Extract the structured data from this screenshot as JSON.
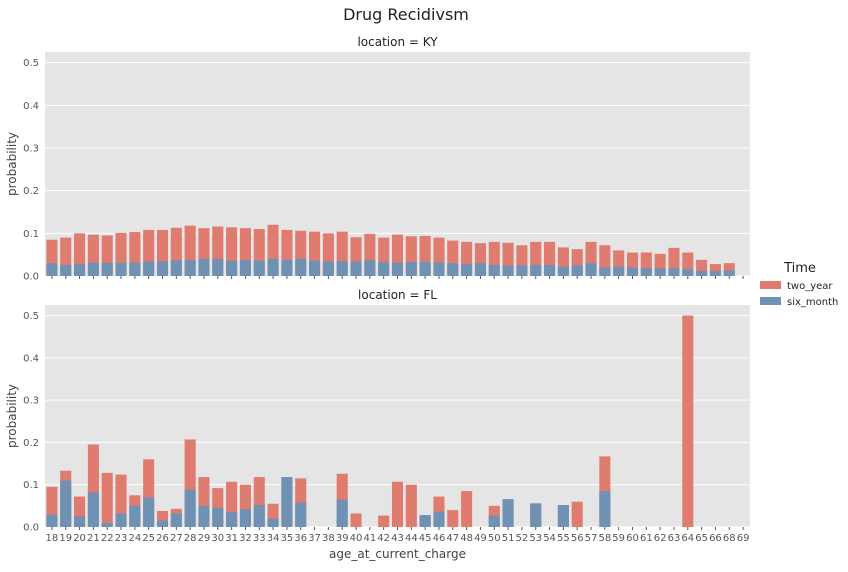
{
  "title": "Drug Recidivsm",
  "colors": {
    "two_year": "#e07b6f",
    "six_month": "#6f92b4",
    "panel_bg": "#e5e5e5",
    "grid": "#ffffff"
  },
  "legend": {
    "title": "Time",
    "placement": "right-center",
    "entries": [
      "two_year",
      "six_month"
    ]
  },
  "chart_data": [
    {
      "type": "bar",
      "title": "location = KY",
      "xlabel": "",
      "ylabel": "probability",
      "ylim": [
        0,
        0.525
      ],
      "yticks": [
        "0.0",
        "0.1",
        "0.2",
        "0.3",
        "0.4",
        "0.5"
      ],
      "categories": [
        "18",
        "19",
        "20",
        "21",
        "22",
        "23",
        "24",
        "25",
        "26",
        "27",
        "28",
        "29",
        "30",
        "31",
        "32",
        "33",
        "34",
        "35",
        "36",
        "37",
        "38",
        "39",
        "40",
        "41",
        "42",
        "43",
        "44",
        "45",
        "46",
        "47",
        "48",
        "49",
        "50",
        "51",
        "52",
        "53",
        "54",
        "55",
        "56",
        "57",
        "58",
        "59",
        "60",
        "61",
        "62",
        "63",
        "64",
        "65",
        "66",
        "68",
        "69"
      ],
      "series": [
        {
          "name": "two_year",
          "values": [
            0.085,
            0.09,
            0.1,
            0.097,
            0.095,
            0.101,
            0.103,
            0.108,
            0.108,
            0.113,
            0.118,
            0.112,
            0.116,
            0.114,
            0.112,
            0.11,
            0.12,
            0.108,
            0.106,
            0.104,
            0.1,
            0.104,
            0.091,
            0.099,
            0.09,
            0.097,
            0.093,
            0.094,
            0.09,
            0.083,
            0.08,
            0.077,
            0.08,
            0.078,
            0.072,
            0.08,
            0.08,
            0.067,
            0.063,
            0.08,
            0.072,
            0.06,
            0.055,
            0.055,
            0.052,
            0.066,
            0.055,
            0.038,
            0.028,
            0.03,
            0.0
          ]
        },
        {
          "name": "six_month",
          "values": [
            0.03,
            0.026,
            0.028,
            0.031,
            0.031,
            0.031,
            0.032,
            0.034,
            0.035,
            0.037,
            0.037,
            0.04,
            0.04,
            0.036,
            0.037,
            0.036,
            0.04,
            0.038,
            0.04,
            0.036,
            0.034,
            0.035,
            0.034,
            0.037,
            0.033,
            0.031,
            0.033,
            0.033,
            0.032,
            0.03,
            0.028,
            0.03,
            0.026,
            0.024,
            0.025,
            0.026,
            0.026,
            0.022,
            0.025,
            0.03,
            0.02,
            0.022,
            0.02,
            0.019,
            0.018,
            0.018,
            0.016,
            0.012,
            0.012,
            0.013,
            0.0
          ]
        }
      ]
    },
    {
      "type": "bar",
      "title": "location = FL",
      "xlabel": "age_at_current_charge",
      "ylabel": "probability",
      "ylim": [
        0,
        0.525
      ],
      "yticks": [
        "0.0",
        "0.1",
        "0.2",
        "0.3",
        "0.4",
        "0.5"
      ],
      "categories": [
        "18",
        "19",
        "20",
        "21",
        "22",
        "23",
        "24",
        "25",
        "26",
        "27",
        "28",
        "29",
        "30",
        "31",
        "32",
        "33",
        "34",
        "35",
        "36",
        "37",
        "38",
        "39",
        "40",
        "41",
        "42",
        "43",
        "44",
        "45",
        "46",
        "47",
        "48",
        "49",
        "50",
        "51",
        "52",
        "53",
        "54",
        "55",
        "56",
        "57",
        "58",
        "59",
        "60",
        "61",
        "62",
        "63",
        "64",
        "65",
        "66",
        "68",
        "69"
      ],
      "series": [
        {
          "name": "two_year",
          "values": [
            0.095,
            0.133,
            0.072,
            0.195,
            0.128,
            0.124,
            0.075,
            0.16,
            0.038,
            0.043,
            0.207,
            0.118,
            0.092,
            0.107,
            0.1,
            0.118,
            0.055,
            0.118,
            0.115,
            0.0,
            0.0,
            0.126,
            0.032,
            0.0,
            0.027,
            0.107,
            0.1,
            0.028,
            0.072,
            0.04,
            0.085,
            0.0,
            0.05,
            0.06,
            0.0,
            0.055,
            0.0,
            0.05,
            0.06,
            0.0,
            0.167,
            0.0,
            0.0,
            0.0,
            0.0,
            0.0,
            0.5,
            0.0,
            0.0,
            0.0,
            0.0
          ]
        },
        {
          "name": "six_month",
          "values": [
            0.03,
            0.11,
            0.025,
            0.082,
            0.01,
            0.032,
            0.05,
            0.07,
            0.015,
            0.032,
            0.088,
            0.05,
            0.045,
            0.036,
            0.042,
            0.052,
            0.02,
            0.118,
            0.058,
            0.0,
            0.0,
            0.065,
            0.0,
            0.0,
            0.0,
            0.0,
            0.0,
            0.028,
            0.036,
            0.0,
            0.0,
            0.0,
            0.027,
            0.066,
            0.0,
            0.056,
            0.0,
            0.052,
            0.0,
            0.0,
            0.085,
            0.0,
            0.0,
            0.0,
            0.0,
            0.0,
            0.0,
            0.0,
            0.0,
            0.0,
            0.0
          ]
        }
      ]
    }
  ]
}
